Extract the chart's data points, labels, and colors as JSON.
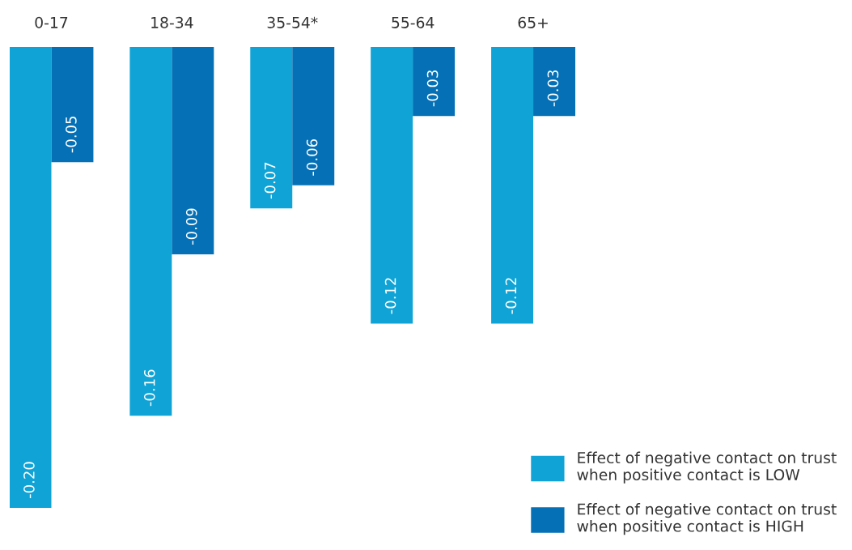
{
  "chart_data": {
    "type": "bar",
    "categories": [
      "0-17",
      "18-34",
      "35-54*",
      "55-64",
      "65+"
    ],
    "series": [
      {
        "name": "Effect of negative contact on trust\nwhen positive contact is LOW",
        "color": "#0fa3d6",
        "values": [
          -0.2,
          -0.16,
          -0.07,
          -0.12,
          -0.12
        ],
        "value_labels": [
          "-0.20",
          "-0.16",
          "-0.07",
          "-0.12",
          "-0.12"
        ]
      },
      {
        "name": "Effect of negative contact on trust\nwhen positive contact is HIGH",
        "color": "#0570b6",
        "values": [
          -0.05,
          -0.09,
          -0.06,
          -0.03,
          -0.03
        ],
        "value_labels": [
          "-0.05",
          "-0.09",
          "-0.06",
          "-0.03",
          "-0.03"
        ]
      }
    ],
    "legend": "bottom right",
    "grid": false
  }
}
